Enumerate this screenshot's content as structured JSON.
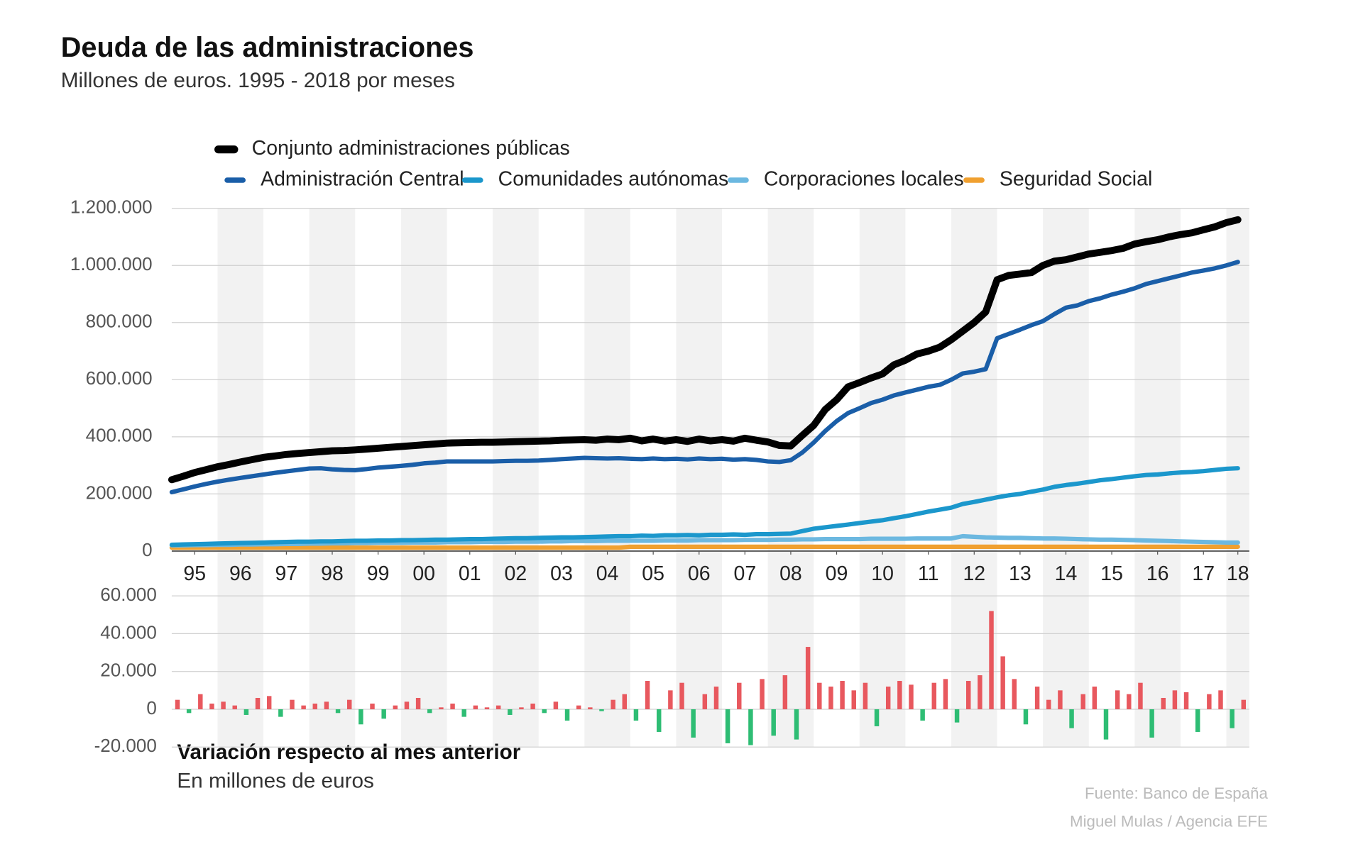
{
  "chart_data": [
    {
      "type": "line",
      "title": "Deuda de las administraciones",
      "subtitle": "Millones de euros. 1995 - 2018 por meses",
      "xlim": [
        0,
        94
      ],
      "xticks": [
        {
          "value": 2,
          "label": "95"
        },
        {
          "value": 6,
          "label": "96"
        },
        {
          "value": 10,
          "label": "97"
        },
        {
          "value": 14,
          "label": "98"
        },
        {
          "value": 18,
          "label": "99"
        },
        {
          "value": 22,
          "label": "00"
        },
        {
          "value": 26,
          "label": "01"
        },
        {
          "value": 30,
          "label": "02"
        },
        {
          "value": 34,
          "label": "03"
        },
        {
          "value": 38,
          "label": "04"
        },
        {
          "value": 42,
          "label": "05"
        },
        {
          "value": 46,
          "label": "06"
        },
        {
          "value": 50,
          "label": "07"
        },
        {
          "value": 54,
          "label": "08"
        },
        {
          "value": 58,
          "label": "09"
        },
        {
          "value": 62,
          "label": "10"
        },
        {
          "value": 66,
          "label": "11"
        },
        {
          "value": 70,
          "label": "12"
        },
        {
          "value": 74,
          "label": "13"
        },
        {
          "value": 78,
          "label": "14"
        },
        {
          "value": 82,
          "label": "15"
        },
        {
          "value": 86,
          "label": "16"
        },
        {
          "value": 90,
          "label": "17"
        },
        {
          "value": 93,
          "label": "18"
        }
      ],
      "ylim": [
        0,
        1200000
      ],
      "yticks": [
        0,
        {
          "value": 200000,
          "label": "200.000"
        },
        {
          "value": 400000,
          "label": "400.000"
        },
        {
          "value": 600000,
          "label": "600.000"
        },
        {
          "value": 800000,
          "label": "800.000"
        },
        {
          "value": 1000000,
          "label": "1.000.000"
        },
        {
          "value": 1200000,
          "label": "1.200.000"
        }
      ],
      "grid": true,
      "series": [
        {
          "name": "Conjunto administraciones públicas",
          "color": "#000000",
          "values": [
            250000,
            262000,
            275000,
            285000,
            295000,
            303000,
            312000,
            320000,
            328000,
            333000,
            338000,
            342000,
            345000,
            348000,
            351000,
            352000,
            354000,
            357000,
            360000,
            363000,
            366000,
            369000,
            372000,
            375000,
            378000,
            379000,
            380000,
            381000,
            381000,
            382000,
            383000,
            384000,
            385000,
            386000,
            388000,
            389000,
            390000,
            388000,
            392000,
            390000,
            395000,
            386000,
            392000,
            385000,
            390000,
            384000,
            392000,
            386000,
            390000,
            385000,
            395000,
            388000,
            382000,
            370000,
            368000,
            405000,
            440000,
            495000,
            530000,
            575000,
            590000,
            606000,
            620000,
            652000,
            668000,
            690000,
            700000,
            714000,
            740000,
            770000,
            800000,
            837000,
            950000,
            965000,
            970000,
            975000,
            1000000,
            1015000,
            1020000,
            1030000,
            1040000,
            1046000,
            1052000,
            1060000,
            1075000,
            1083000,
            1090000,
            1100000,
            1108000,
            1114000,
            1125000,
            1135000,
            1150000,
            1160000
          ]
        },
        {
          "name": "Administración Central",
          "color": "#1a5ea8",
          "values": [
            206000,
            216000,
            226000,
            235000,
            243000,
            250000,
            256000,
            262000,
            268000,
            274000,
            279000,
            284000,
            289000,
            290000,
            286000,
            284000,
            283000,
            287000,
            292000,
            295000,
            298000,
            302000,
            307000,
            310000,
            314000,
            314000,
            314000,
            314000,
            314000,
            315000,
            316000,
            316000,
            317000,
            319000,
            322000,
            324000,
            326000,
            325000,
            324000,
            325000,
            323000,
            322000,
            324000,
            322000,
            323000,
            321000,
            324000,
            322000,
            323000,
            320000,
            322000,
            319000,
            314000,
            312000,
            318000,
            345000,
            380000,
            420000,
            455000,
            483000,
            500000,
            518000,
            530000,
            545000,
            555000,
            565000,
            575000,
            582000,
            600000,
            622000,
            628000,
            637000,
            745000,
            760000,
            775000,
            791000,
            805000,
            830000,
            852000,
            860000,
            875000,
            885000,
            898000,
            908000,
            920000,
            935000,
            945000,
            955000,
            965000,
            975000,
            982000,
            990000,
            1000000,
            1012000
          ]
        },
        {
          "name": "Comunidades autónomas",
          "color": "#1b97cc",
          "values": [
            22000,
            23000,
            24000,
            25000,
            26000,
            27000,
            28000,
            29000,
            30000,
            31000,
            32000,
            33000,
            33000,
            34000,
            34000,
            35000,
            36000,
            36000,
            37000,
            37000,
            38000,
            38000,
            39000,
            40000,
            40000,
            41000,
            42000,
            42000,
            43000,
            44000,
            45000,
            45000,
            46000,
            47000,
            48000,
            48000,
            49000,
            50000,
            51000,
            52000,
            52000,
            54000,
            53000,
            55000,
            55000,
            56000,
            55000,
            57000,
            57000,
            58000,
            57000,
            59000,
            59000,
            60000,
            61000,
            70000,
            78000,
            83000,
            88000,
            93000,
            98000,
            103000,
            108000,
            115000,
            122000,
            130000,
            138000,
            145000,
            152000,
            165000,
            172000,
            180000,
            188000,
            195000,
            200000,
            208000,
            215000,
            225000,
            231000,
            236000,
            242000,
            248000,
            252000,
            257000,
            262000,
            266000,
            268000,
            272000,
            275000,
            277000,
            280000,
            284000,
            288000,
            290000
          ]
        },
        {
          "name": "Corporaciones locales",
          "color": "#6cb8e0",
          "values": [
            20000,
            20000,
            21000,
            21000,
            22000,
            22000,
            23000,
            23000,
            24000,
            24000,
            25000,
            25000,
            26000,
            26000,
            27000,
            27000,
            28000,
            28000,
            29000,
            29000,
            29000,
            30000,
            30000,
            30000,
            31000,
            31000,
            31000,
            32000,
            32000,
            32000,
            33000,
            33000,
            33000,
            34000,
            34000,
            35000,
            35000,
            35000,
            36000,
            36000,
            36000,
            36000,
            36000,
            37000,
            37000,
            37000,
            38000,
            38000,
            38000,
            38000,
            39000,
            39000,
            39000,
            40000,
            40000,
            41000,
            41000,
            42000,
            42000,
            42000,
            42000,
            43000,
            43000,
            43000,
            43000,
            44000,
            44000,
            44000,
            44000,
            52000,
            50000,
            48000,
            47000,
            46000,
            46000,
            45000,
            44000,
            44000,
            43000,
            42000,
            41000,
            40000,
            40000,
            39000,
            38000,
            37000,
            36000,
            35000,
            34000,
            33000,
            32000,
            31000,
            30000,
            30000
          ]
        },
        {
          "name": "Seguridad Social",
          "color": "#f0a030",
          "values": [
            12000,
            12000,
            12000,
            12000,
            12000,
            12000,
            12000,
            12000,
            12000,
            12000,
            12000,
            12000,
            12000,
            12000,
            12000,
            12000,
            12000,
            12000,
            12000,
            12000,
            12000,
            12000,
            12000,
            12000,
            12000,
            12000,
            12000,
            12000,
            12000,
            12000,
            12000,
            12000,
            12000,
            12000,
            12000,
            12000,
            12000,
            12000,
            12000,
            12000,
            15000,
            15000,
            15000,
            15000,
            15000,
            15000,
            15000,
            15000,
            15000,
            15000,
            15000,
            15000,
            15000,
            15000,
            15000,
            15000,
            15000,
            15000,
            15000,
            15000,
            15000,
            15000,
            15000,
            15000,
            15000,
            15000,
            15000,
            15000,
            15000,
            15000,
            15000,
            15000,
            15000,
            15000,
            15000,
            15000,
            15000,
            15000,
            15000,
            15000,
            15000,
            15000,
            15000,
            15000,
            15000,
            15000,
            15000,
            15000,
            15000,
            15000,
            15000,
            15000,
            15000,
            15000
          ]
        }
      ]
    },
    {
      "type": "bar",
      "title": "Variación respecto al mes anterior",
      "subtitle": "En millones de euros",
      "xlim": [
        0,
        94
      ],
      "ylim": [
        -20000,
        60000
      ],
      "yticks": [
        {
          "value": -20000,
          "label": "-20.000"
        },
        0,
        {
          "value": 20000,
          "label": "20.000"
        },
        {
          "value": 40000,
          "label": "40.000"
        },
        {
          "value": 60000,
          "label": "60.000"
        }
      ],
      "grid": true,
      "positive_color": "#e8585e",
      "negative_color": "#2ebd74",
      "values": [
        5000,
        -2000,
        8000,
        3000,
        4000,
        2000,
        -3000,
        6000,
        7000,
        -4000,
        5000,
        2000,
        3000,
        4000,
        -2000,
        5000,
        -8000,
        3000,
        -5000,
        2000,
        4000,
        6000,
        -2000,
        1000,
        3000,
        -4000,
        2000,
        1000,
        2000,
        -3000,
        1000,
        3000,
        -2000,
        4000,
        -6000,
        2000,
        1000,
        -1000,
        5000,
        8000,
        -6000,
        15000,
        -12000,
        10000,
        14000,
        -15000,
        8000,
        12000,
        -18000,
        14000,
        -19000,
        16000,
        -14000,
        18000,
        -16000,
        33000,
        14000,
        12000,
        15000,
        10000,
        14000,
        -9000,
        12000,
        15000,
        13000,
        -6000,
        14000,
        16000,
        -7000,
        15000,
        18000,
        52000,
        28000,
        16000,
        -8000,
        12000,
        5000,
        10000,
        -10000,
        8000,
        12000,
        -16000,
        10000,
        8000,
        14000,
        -15000,
        6000,
        10000,
        9000,
        -12000,
        8000,
        10000,
        -10000,
        5000
      ]
    }
  ],
  "footer": {
    "source": "Fuente: Banco de España",
    "credit": "Miguel Mulas / Agencia EFE"
  }
}
